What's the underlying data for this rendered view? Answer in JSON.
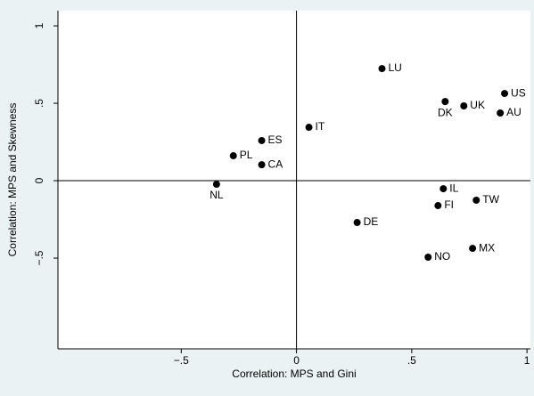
{
  "chart_data": {
    "type": "scatter",
    "x_label": "Correlation: MPS and Gini",
    "y_label": "Correlation: MPS and Skewness",
    "labels": [
      "LU",
      "US",
      "DK",
      "UK",
      "AU",
      "IT",
      "ES",
      "PL",
      "CA",
      "NL",
      "IL",
      "TW",
      "FI",
      "DE",
      "MX",
      "NO"
    ],
    "x": [
      0.371,
      0.903,
      0.645,
      0.726,
      0.884,
      0.054,
      -0.151,
      -0.274,
      -0.151,
      -0.347,
      0.637,
      0.78,
      0.614,
      0.263,
      0.764,
      0.571
    ],
    "y": [
      0.724,
      0.563,
      0.511,
      0.483,
      0.437,
      0.345,
      0.259,
      0.161,
      0.103,
      -0.023,
      -0.052,
      -0.126,
      -0.161,
      -0.27,
      -0.437,
      -0.494
    ],
    "label_positions": [
      "right",
      "right",
      "below",
      "right",
      "right",
      "right",
      "right",
      "right",
      "right",
      "below",
      "right",
      "right",
      "right",
      "right",
      "right",
      "right"
    ],
    "color": "#000000",
    "xlim": [
      -1.035,
      1.015
    ],
    "ylim": [
      -1.086,
      1.098
    ],
    "xticks": [
      {
        "value": -0.5,
        "label": "−.5"
      },
      0,
      {
        "value": 0.5,
        "label": ".5"
      },
      1
    ],
    "yticks": [
      {
        "value": -0.5,
        "label": "−.5"
      },
      0,
      {
        "value": 0.5,
        "label": ".5"
      },
      1
    ],
    "xline": 0,
    "yline": 0,
    "grid": false
  }
}
